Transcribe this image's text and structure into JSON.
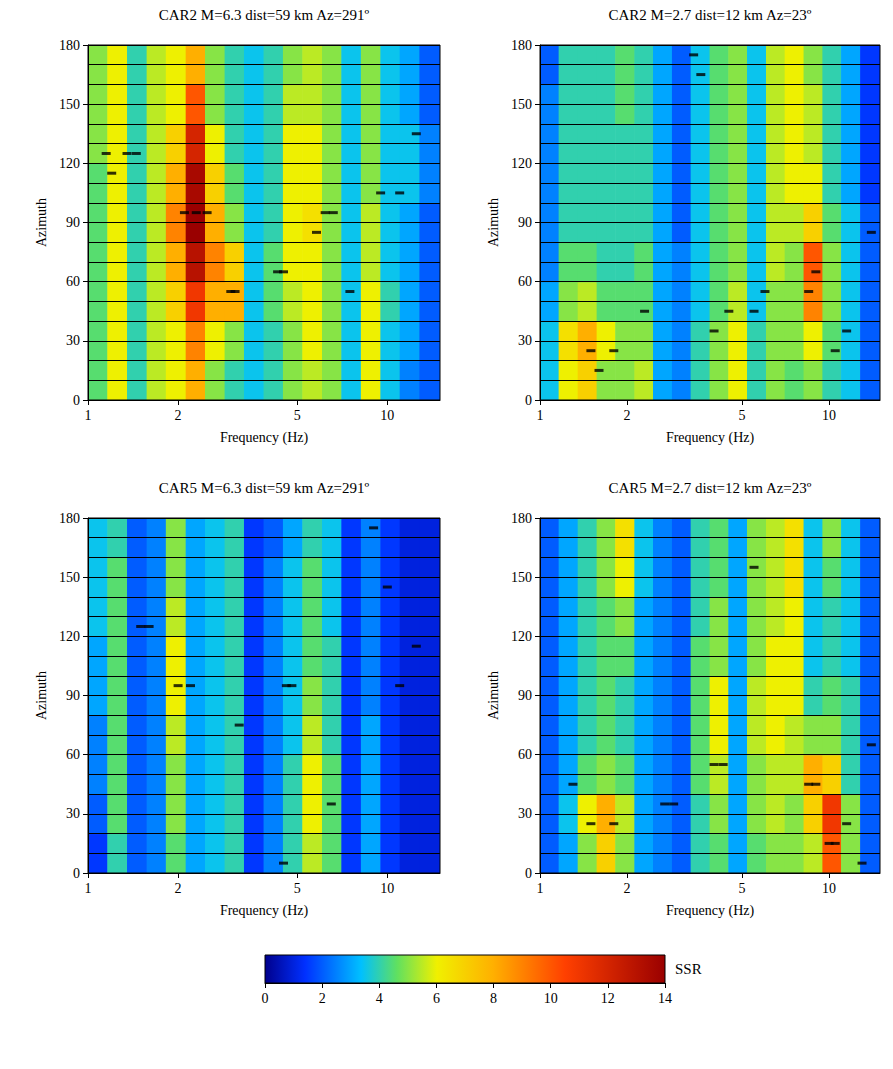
{
  "chart_data": [
    {
      "type": "heatmap",
      "title": "CAR2 M=6.3 dist=59 km Az=291º",
      "xlabel": "Frequency (Hz)",
      "ylabel": "Azimuth",
      "log": "x",
      "xlim": [
        1,
        15
      ],
      "xticks": [
        1,
        2,
        5,
        10
      ],
      "ylim": [
        0,
        180
      ],
      "yticks": [
        0,
        30,
        60,
        90,
        120,
        150,
        180
      ],
      "grid": true,
      "freq_bins": [
        1,
        1.16,
        1.35,
        1.57,
        1.82,
        2.12,
        2.46,
        2.86,
        3.32,
        3.86,
        4.48,
        5.2,
        6.05,
        7.02,
        8.16,
        9.48,
        11.0,
        12.8,
        15
      ],
      "azimuth_bins": [
        0,
        20,
        40,
        60,
        80,
        100,
        120,
        140,
        160,
        180
      ],
      "cells": [
        [
          4.5,
          6,
          4,
          5.5,
          6,
          8,
          5,
          4,
          3.5,
          4,
          5,
          5.5,
          5,
          3.5,
          6,
          3.5,
          2.5,
          2
        ],
        [
          4.5,
          6,
          4,
          5.5,
          6,
          9,
          6,
          5,
          3.5,
          4,
          5,
          6,
          5,
          3.5,
          6,
          3.5,
          3,
          2
        ],
        [
          4.5,
          6,
          4,
          5.5,
          7,
          11,
          8,
          8,
          3.5,
          4.5,
          5.5,
          6,
          5,
          3.5,
          6,
          4,
          3,
          2
        ],
        [
          4.5,
          6,
          4,
          5.5,
          8,
          13,
          9,
          7,
          3.5,
          4.5,
          6,
          6,
          5,
          3.5,
          5.5,
          3.5,
          3,
          2
        ],
        [
          4.5,
          6,
          4,
          5.5,
          9,
          14,
          8,
          5,
          3.5,
          4,
          6,
          6.5,
          5,
          3.5,
          5.5,
          3.5,
          3,
          2
        ],
        [
          4.5,
          6,
          4,
          5.5,
          8,
          13.5,
          7,
          4.5,
          3.5,
          4,
          6,
          6,
          5,
          3.5,
          5,
          3.5,
          3.5,
          2.5
        ],
        [
          5,
          6,
          4,
          5.5,
          7,
          12,
          6,
          4,
          3.5,
          4,
          6,
          6,
          5,
          3.5,
          5,
          3.5,
          3.5,
          2.5
        ],
        [
          5,
          6,
          4,
          5.5,
          6,
          10,
          5,
          4,
          3.5,
          4,
          5.5,
          5.5,
          5,
          3.5,
          5,
          3.5,
          3,
          2
        ],
        [
          5,
          6,
          4,
          5.5,
          6,
          8,
          5,
          4,
          3.5,
          4,
          5,
          5.5,
          5,
          3.5,
          5,
          3.5,
          3,
          2
        ]
      ],
      "peaks": {
        "marker": "dash",
        "color": "#000000",
        "points": [
          [
            1.15,
            125
          ],
          [
            1.2,
            115
          ],
          [
            1.35,
            125
          ],
          [
            1.45,
            125
          ],
          [
            2.1,
            95
          ],
          [
            2.3,
            95
          ],
          [
            2.5,
            95
          ],
          [
            3.0,
            55
          ],
          [
            3.1,
            55
          ],
          [
            4.3,
            65
          ],
          [
            4.5,
            65
          ],
          [
            5.8,
            85
          ],
          [
            6.2,
            95
          ],
          [
            6.6,
            95
          ],
          [
            7.5,
            55
          ],
          [
            9.5,
            105
          ],
          [
            11,
            105
          ],
          [
            12.5,
            135
          ]
        ]
      }
    },
    {
      "type": "heatmap",
      "title": "CAR2 M=2.7 dist=12 km Az=23º",
      "xlabel": "Frequency (Hz)",
      "ylabel": "Azimuth",
      "log": "x",
      "xlim": [
        1,
        15
      ],
      "xticks": [
        1,
        2,
        5,
        10
      ],
      "ylim": [
        0,
        180
      ],
      "yticks": [
        0,
        30,
        60,
        90,
        120,
        150,
        180
      ],
      "grid": true,
      "freq_bins": [
        1,
        1.16,
        1.35,
        1.57,
        1.82,
        2.12,
        2.46,
        2.86,
        3.32,
        3.86,
        4.48,
        5.2,
        6.05,
        7.02,
        8.16,
        9.48,
        11.0,
        12.8,
        15
      ],
      "azimuth_bins": [
        0,
        20,
        40,
        60,
        80,
        100,
        120,
        140,
        160,
        180
      ],
      "cells": [
        [
          3.5,
          6,
          7,
          5,
          5,
          5.5,
          3,
          2.5,
          4,
          5,
          6,
          4,
          5,
          4.5,
          5,
          4,
          3.5,
          2
        ],
        [
          3.5,
          6.5,
          8,
          6,
          5,
          5,
          3,
          2.5,
          4,
          5,
          6,
          4,
          5,
          5,
          6,
          4.5,
          3.5,
          2
        ],
        [
          3,
          5,
          5.5,
          4.5,
          4.5,
          4.5,
          3,
          2.5,
          3.5,
          4.5,
          5.5,
          3.5,
          5,
          5,
          9,
          5,
          3.5,
          2
        ],
        [
          2.5,
          4.5,
          4.5,
          4,
          4,
          4.5,
          3,
          2.5,
          3.5,
          4.5,
          5,
          3.5,
          5.5,
          5,
          10,
          5,
          3.5,
          2
        ],
        [
          2.5,
          4,
          4,
          4,
          4,
          4,
          3,
          2,
          3.5,
          4.5,
          5,
          3.5,
          5.5,
          5.5,
          7,
          4.5,
          3.5,
          2
        ],
        [
          2.5,
          4,
          4,
          4,
          4,
          4,
          3,
          2,
          3.5,
          4.5,
          5,
          3.5,
          5.5,
          6,
          6,
          4,
          3,
          1.5
        ],
        [
          2.5,
          4,
          4,
          4,
          4,
          4,
          3,
          2,
          3.5,
          4.5,
          5,
          3.5,
          5.5,
          6,
          5.5,
          4,
          3,
          1.5
        ],
        [
          2.5,
          4,
          4,
          4,
          4.5,
          4,
          3,
          2,
          3.5,
          4.5,
          5,
          3.5,
          5.5,
          6,
          5.5,
          4,
          3,
          1.5
        ],
        [
          2,
          4,
          4,
          4,
          4.5,
          4,
          3,
          2,
          3.5,
          4.5,
          5,
          3.5,
          5.5,
          6,
          5,
          4,
          3,
          1.5
        ]
      ],
      "peaks": {
        "marker": "dash",
        "color": "#000000",
        "points": [
          [
            1.5,
            25
          ],
          [
            1.6,
            15
          ],
          [
            1.8,
            25
          ],
          [
            2.3,
            45
          ],
          [
            3.4,
            175
          ],
          [
            3.6,
            165
          ],
          [
            4.0,
            35
          ],
          [
            4.5,
            45
          ],
          [
            5.5,
            45
          ],
          [
            6.0,
            55
          ],
          [
            8.5,
            55
          ],
          [
            9.0,
            65
          ],
          [
            10.5,
            25
          ],
          [
            11.5,
            35
          ],
          [
            14,
            85
          ]
        ]
      }
    },
    {
      "type": "heatmap",
      "title": "CAR5 M=6.3 dist=59 km Az=291º",
      "xlabel": "Frequency (Hz)",
      "ylabel": "Azimuth",
      "log": "x",
      "xlim": [
        1,
        15
      ],
      "xticks": [
        1,
        2,
        5,
        10
      ],
      "ylim": [
        0,
        180
      ],
      "yticks": [
        0,
        30,
        60,
        90,
        120,
        150,
        180
      ],
      "grid": true,
      "freq_bins": [
        1,
        1.16,
        1.35,
        1.57,
        1.82,
        2.12,
        2.46,
        2.86,
        3.32,
        3.86,
        4.48,
        5.2,
        6.05,
        7.02,
        8.16,
        9.48,
        11.0,
        12.8,
        15
      ],
      "azimuth_bins": [
        0,
        20,
        40,
        60,
        80,
        100,
        120,
        140,
        160,
        180
      ],
      "cells": [
        [
          1.5,
          4,
          2,
          2.5,
          4.5,
          3,
          3.5,
          4,
          1.5,
          2.5,
          4,
          5.5,
          4.5,
          1.5,
          3,
          1.5,
          1,
          1
        ],
        [
          2,
          4.5,
          2,
          2.5,
          5,
          3,
          3.5,
          4,
          1.5,
          2.5,
          4,
          6,
          4.5,
          1.5,
          3,
          1.5,
          1,
          1
        ],
        [
          2.5,
          4.5,
          2,
          2.5,
          5,
          3,
          3.5,
          4,
          1.5,
          2.5,
          4,
          6,
          4.5,
          1.5,
          3,
          1.5,
          1,
          1
        ],
        [
          2.5,
          4.5,
          2,
          2.5,
          5.5,
          3,
          3.5,
          4,
          1.5,
          2.5,
          3.5,
          5.5,
          4,
          1.5,
          3,
          1.5,
          1,
          1
        ],
        [
          3,
          4.5,
          2,
          2.5,
          6,
          3,
          3.5,
          4,
          1.5,
          2.5,
          3.5,
          5,
          4,
          1.5,
          2.5,
          1.5,
          1,
          1
        ],
        [
          3,
          4.5,
          2,
          2.5,
          6,
          3,
          3.5,
          4,
          1.5,
          2.5,
          3.5,
          4.5,
          4,
          1.5,
          2.5,
          1.5,
          1,
          1
        ],
        [
          3.5,
          4.5,
          2,
          2.5,
          5.5,
          3,
          3.5,
          4,
          1.5,
          2.5,
          3.5,
          4.5,
          3.5,
          1.5,
          2.5,
          1.5,
          1,
          1
        ],
        [
          3.5,
          4.5,
          2,
          2.5,
          5,
          3,
          3.5,
          4,
          1.5,
          2.5,
          3.5,
          4.5,
          3.5,
          1.5,
          2.5,
          1.5,
          1,
          1
        ],
        [
          3.5,
          4,
          2,
          2.5,
          5,
          3,
          3.5,
          4,
          1.5,
          2,
          3,
          4,
          3.5,
          1.5,
          2.5,
          1.5,
          1,
          1
        ]
      ],
      "peaks": {
        "marker": "dash",
        "color": "#000000",
        "points": [
          [
            1.5,
            125
          ],
          [
            1.6,
            125
          ],
          [
            2.0,
            95
          ],
          [
            2.2,
            95
          ],
          [
            3.2,
            75
          ],
          [
            4.5,
            5
          ],
          [
            4.6,
            95
          ],
          [
            4.8,
            95
          ],
          [
            6.5,
            35
          ],
          [
            9,
            175
          ],
          [
            10,
            145
          ],
          [
            11,
            95
          ],
          [
            12.5,
            115
          ]
        ]
      }
    },
    {
      "type": "heatmap",
      "title": "CAR5 M=2.7 dist=12 km Az=23º",
      "xlabel": "Frequency (Hz)",
      "ylabel": "Azimuth",
      "log": "x",
      "xlim": [
        1,
        15
      ],
      "xticks": [
        1,
        2,
        5,
        10
      ],
      "ylim": [
        0,
        180
      ],
      "yticks": [
        0,
        30,
        60,
        90,
        120,
        150,
        180
      ],
      "grid": true,
      "freq_bins": [
        1,
        1.16,
        1.35,
        1.57,
        1.82,
        2.12,
        2.46,
        2.86,
        3.32,
        3.86,
        4.48,
        5.2,
        6.05,
        7.02,
        8.16,
        9.48,
        11.0,
        12.8,
        15
      ],
      "azimuth_bins": [
        0,
        20,
        40,
        60,
        80,
        100,
        120,
        140,
        160,
        180
      ],
      "cells": [
        [
          2,
          3,
          5,
          7,
          5,
          3,
          2.5,
          2,
          4,
          4.5,
          3,
          4.5,
          5,
          5,
          5.5,
          10,
          5,
          2
        ],
        [
          2,
          3.5,
          6,
          8,
          5.5,
          3,
          2.5,
          2,
          4,
          5,
          3,
          5,
          5.5,
          5,
          7,
          11,
          5,
          2
        ],
        [
          2,
          3,
          4.5,
          5,
          4.5,
          3,
          2.5,
          2,
          4.5,
          5.5,
          3,
          5,
          5.5,
          5.5,
          8,
          7,
          4,
          2
        ],
        [
          2,
          3,
          4,
          4.5,
          4,
          3,
          2.5,
          2,
          4.5,
          6,
          3,
          5.5,
          6,
          5.5,
          5,
          5,
          4,
          2
        ],
        [
          2,
          3,
          4,
          4.5,
          4,
          3,
          2.5,
          2,
          4.5,
          6,
          3,
          5.5,
          6,
          6,
          4,
          4.5,
          4,
          2
        ],
        [
          2,
          3,
          4,
          4.5,
          4.5,
          3,
          2.5,
          2,
          4.5,
          5,
          3,
          5,
          6,
          6,
          3.5,
          4,
          3.5,
          2
        ],
        [
          2,
          3,
          4,
          4.5,
          5,
          3,
          2.5,
          2,
          4,
          5,
          3,
          5,
          5.5,
          6,
          3.5,
          4,
          3.5,
          2
        ],
        [
          2,
          3,
          4,
          5,
          6,
          3.5,
          2.5,
          2,
          4,
          4.5,
          3,
          5,
          5.5,
          6.5,
          3.5,
          4.5,
          3.5,
          2
        ],
        [
          2,
          3,
          4,
          5,
          6.5,
          3.5,
          2.5,
          2,
          4,
          4.5,
          3,
          5,
          5.5,
          6.5,
          3.5,
          5,
          3.5,
          2
        ]
      ],
      "peaks": {
        "marker": "dash",
        "color": "#000000",
        "points": [
          [
            1.3,
            45
          ],
          [
            1.5,
            25
          ],
          [
            1.8,
            25
          ],
          [
            2.7,
            35
          ],
          [
            2.9,
            35
          ],
          [
            4.0,
            55
          ],
          [
            4.3,
            55
          ],
          [
            5.5,
            155
          ],
          [
            8.5,
            45
          ],
          [
            9.0,
            45
          ],
          [
            10,
            15
          ],
          [
            10.5,
            15
          ],
          [
            11.5,
            25
          ],
          [
            13,
            5
          ],
          [
            14,
            65
          ]
        ]
      }
    }
  ],
  "colorbar": {
    "label": "SSR",
    "range": [
      0,
      14
    ],
    "ticks": [
      0,
      2,
      4,
      6,
      8,
      10,
      12,
      14
    ]
  }
}
